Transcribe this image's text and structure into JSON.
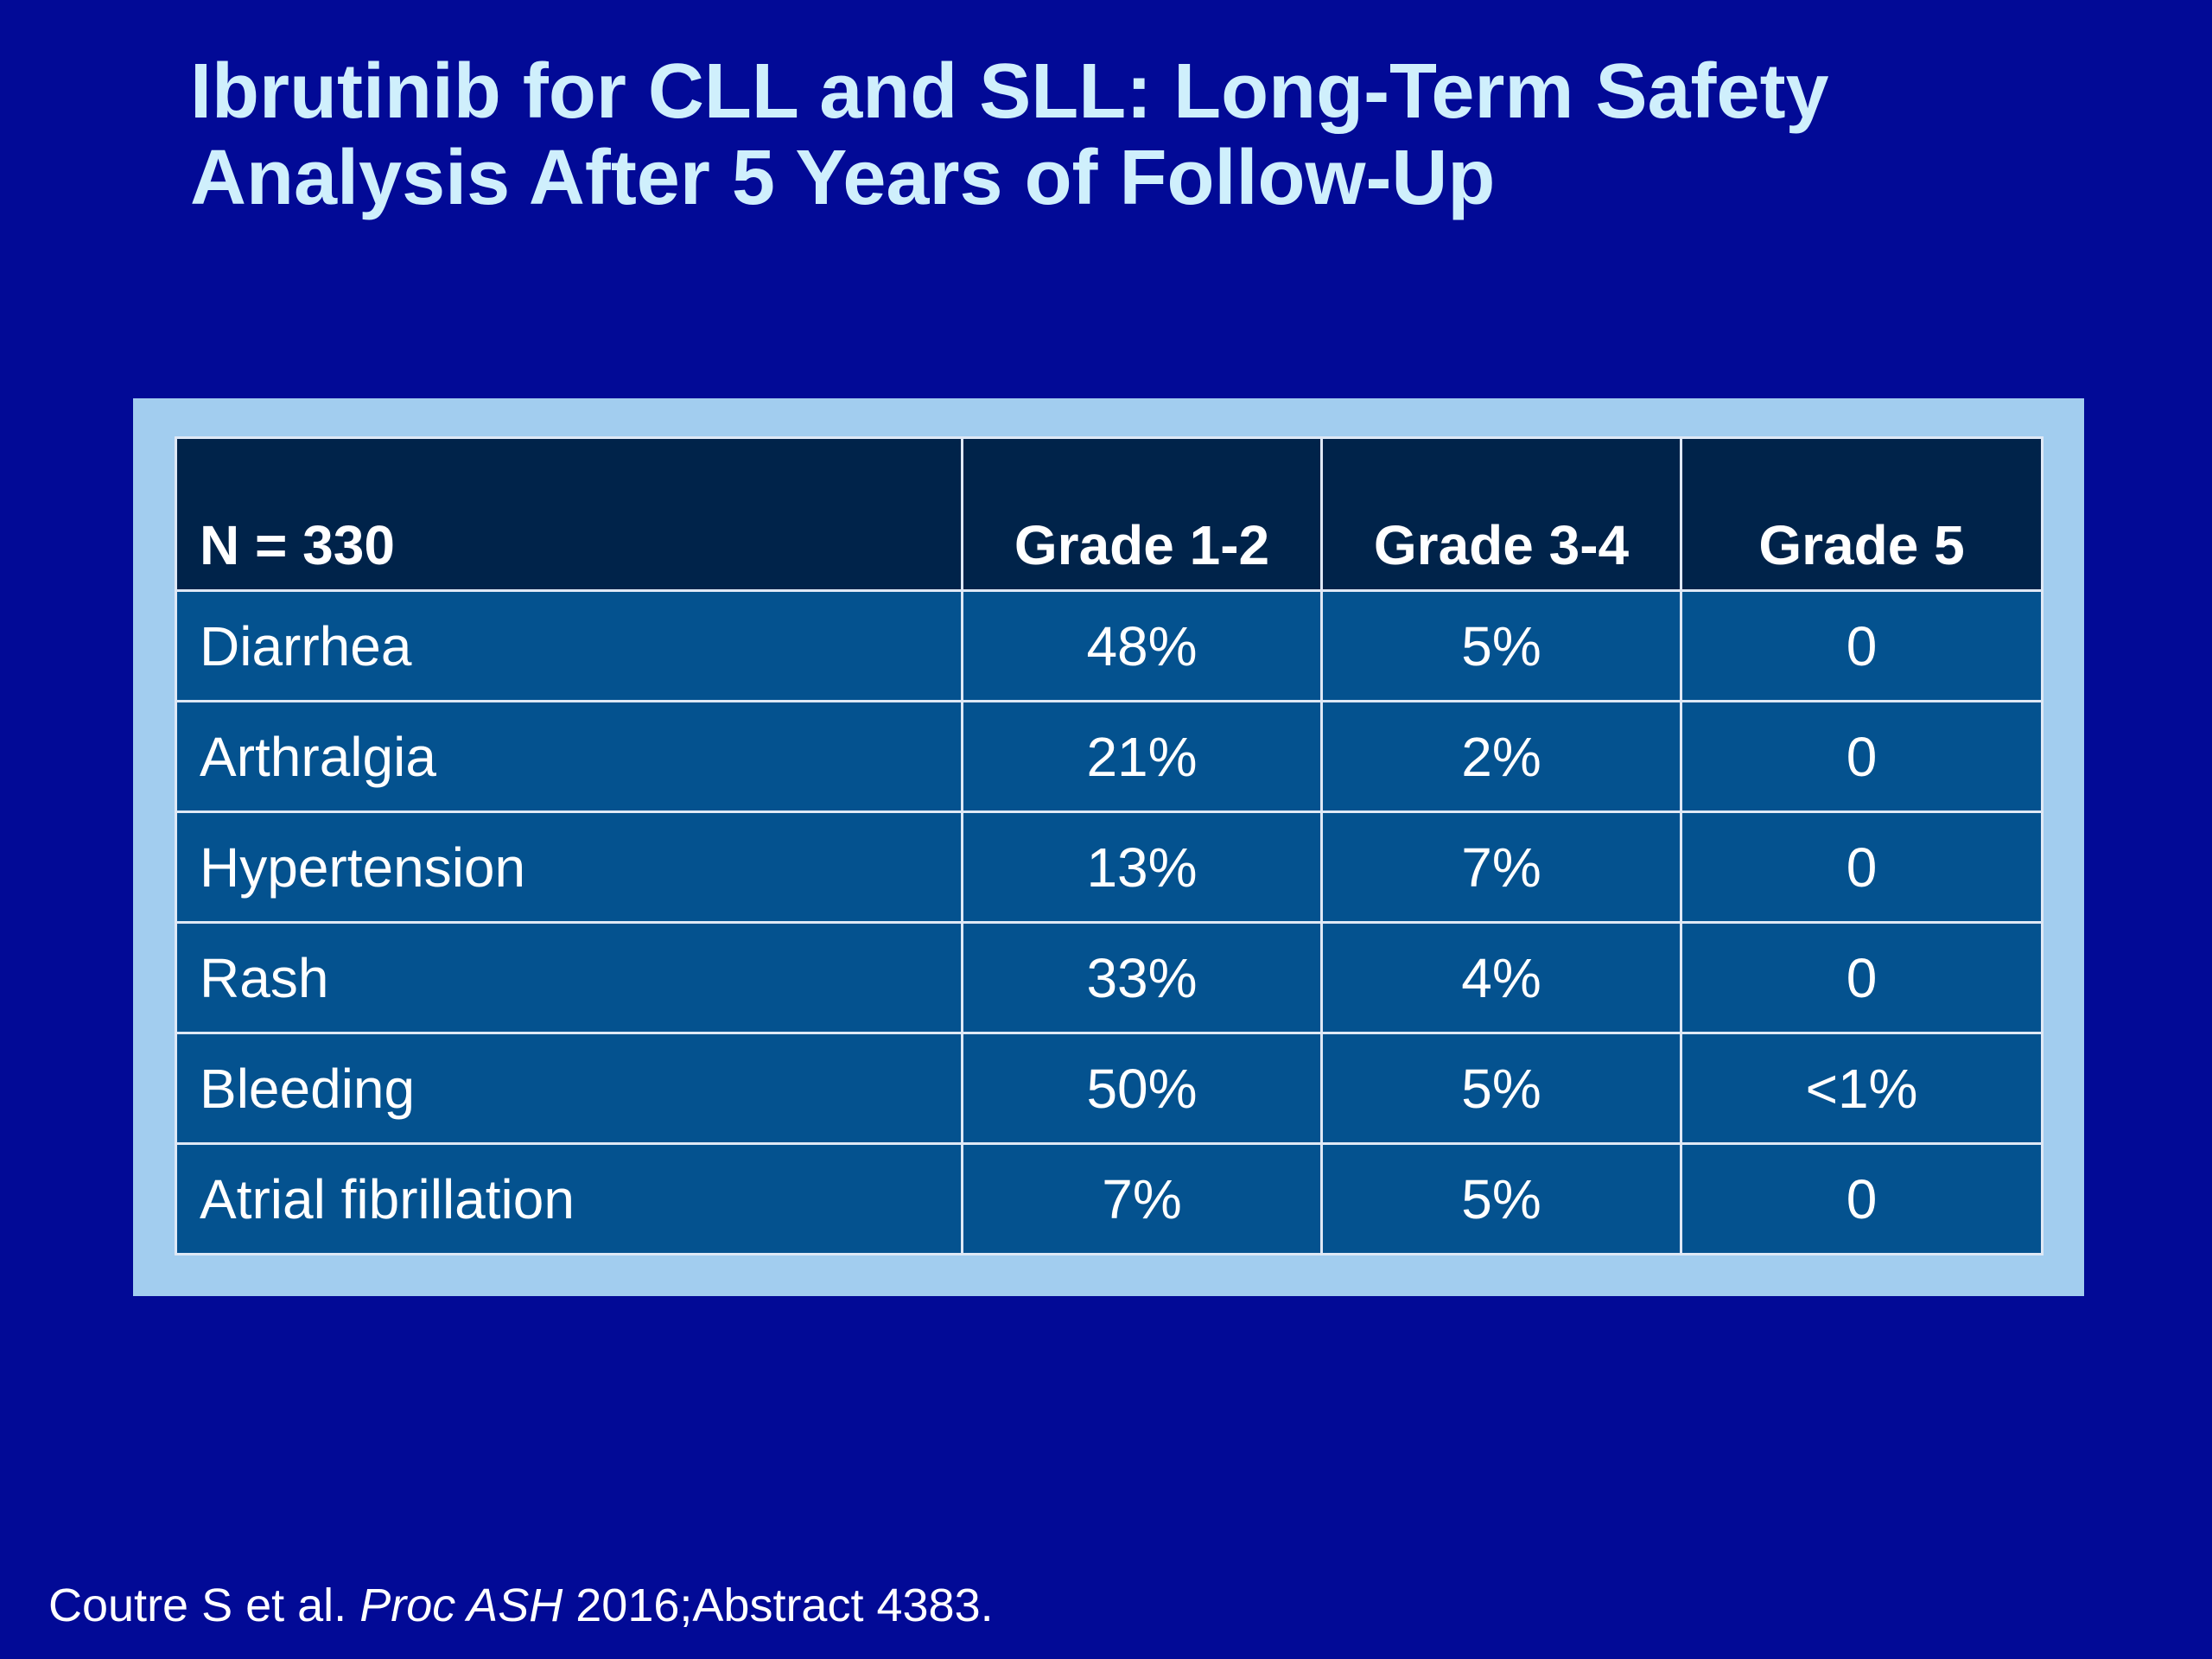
{
  "slide": {
    "title_line1": "Ibrutinib for CLL and SLL: Long-Term Safety",
    "title_line2": "Analysis After 5 Years of Follow-Up"
  },
  "table": {
    "headers": [
      "N = 330",
      "Grade 1-2",
      "Grade 3-4",
      "Grade 5"
    ],
    "rows": [
      {
        "event": "Diarrhea",
        "grade_1_2": "48%",
        "grade_3_4": "5%",
        "grade_5": "0"
      },
      {
        "event": "Arthralgia",
        "grade_1_2": "21%",
        "grade_3_4": "2%",
        "grade_5": "0"
      },
      {
        "event": "Hypertension",
        "grade_1_2": "13%",
        "grade_3_4": "7%",
        "grade_5": "0"
      },
      {
        "event": "Rash",
        "grade_1_2": "33%",
        "grade_3_4": "4%",
        "grade_5": "0"
      },
      {
        "event": "Bleeding",
        "grade_1_2": "50%",
        "grade_3_4": "5%",
        "grade_5": "<1%"
      },
      {
        "event": "Atrial fibrillation",
        "grade_1_2": "7%",
        "grade_3_4": "5%",
        "grade_5": "0"
      }
    ]
  },
  "citation": {
    "authors": "Coutre S et al. ",
    "journal": "Proc ASH",
    "details": " 2016;Abstract 4383."
  },
  "colors": {
    "background": "#020a96",
    "title": "#cfeffc",
    "frame": "#a2cdef",
    "header_cell": "#00234a",
    "body_cell": "#04528f",
    "grid": "#dfe8f5"
  }
}
